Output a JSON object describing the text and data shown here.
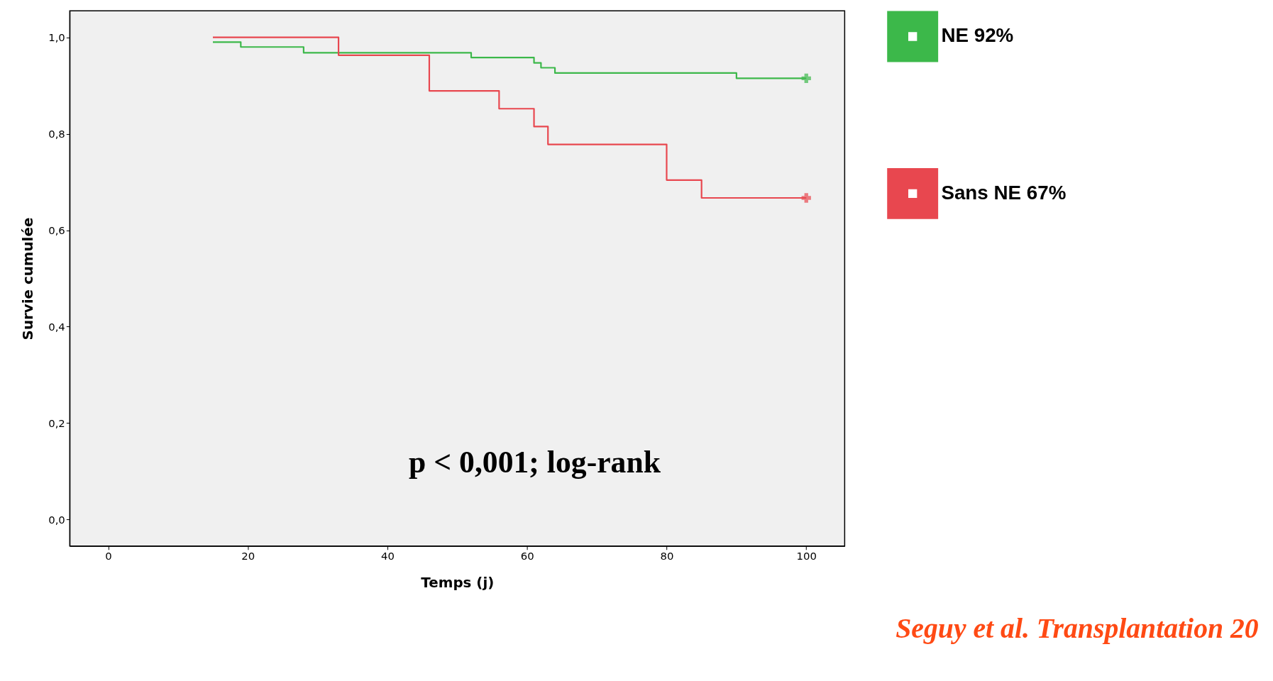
{
  "chart_data": {
    "type": "step",
    "xlabel": "Temps (j)",
    "ylabel": "Survie cumulée",
    "xlim": [
      -5.5,
      105.5
    ],
    "ylim": [
      -0.055,
      1.055
    ],
    "xticks": [
      0,
      20,
      40,
      60,
      80,
      100
    ],
    "yticks": [
      {
        "value": 0,
        "label": "0,0"
      },
      {
        "value": 0.2,
        "label": "0,2"
      },
      {
        "value": 0.4,
        "label": "0,4"
      },
      {
        "value": 0.6,
        "label": "0,6"
      },
      {
        "value": 0.8,
        "label": "0,8"
      },
      {
        "value": 1.0,
        "label": "1,0"
      }
    ],
    "grid": false,
    "legend": "right",
    "series": [
      {
        "name": "NE 92%",
        "color": "#3cb84a",
        "x": [
          15,
          19,
          28,
          52,
          61,
          62,
          64,
          90,
          100
        ],
        "values": [
          0.99,
          0.98,
          0.968,
          0.958,
          0.947,
          0.937,
          0.926,
          0.915,
          0.915
        ]
      },
      {
        "name": "Sans NE 67%",
        "color": "#e8474f",
        "x": [
          15,
          33,
          46,
          56,
          61,
          63,
          80,
          85,
          100
        ],
        "values": [
          1.0,
          0.963,
          0.889,
          0.852,
          0.815,
          0.778,
          0.704,
          0.667,
          0.667
        ]
      },
      {
        "type": "scatter",
        "marker": "cross",
        "color": "#3cb84a",
        "x": [
          100
        ],
        "values": [
          0.915
        ]
      },
      {
        "type": "scatter",
        "marker": "cross",
        "color": "#e8474f",
        "x": [
          100
        ],
        "values": [
          0.667
        ]
      }
    ],
    "annotations": [
      "p < 0,001; log-rank",
      "Seguy et al. Transplantation 20"
    ]
  }
}
